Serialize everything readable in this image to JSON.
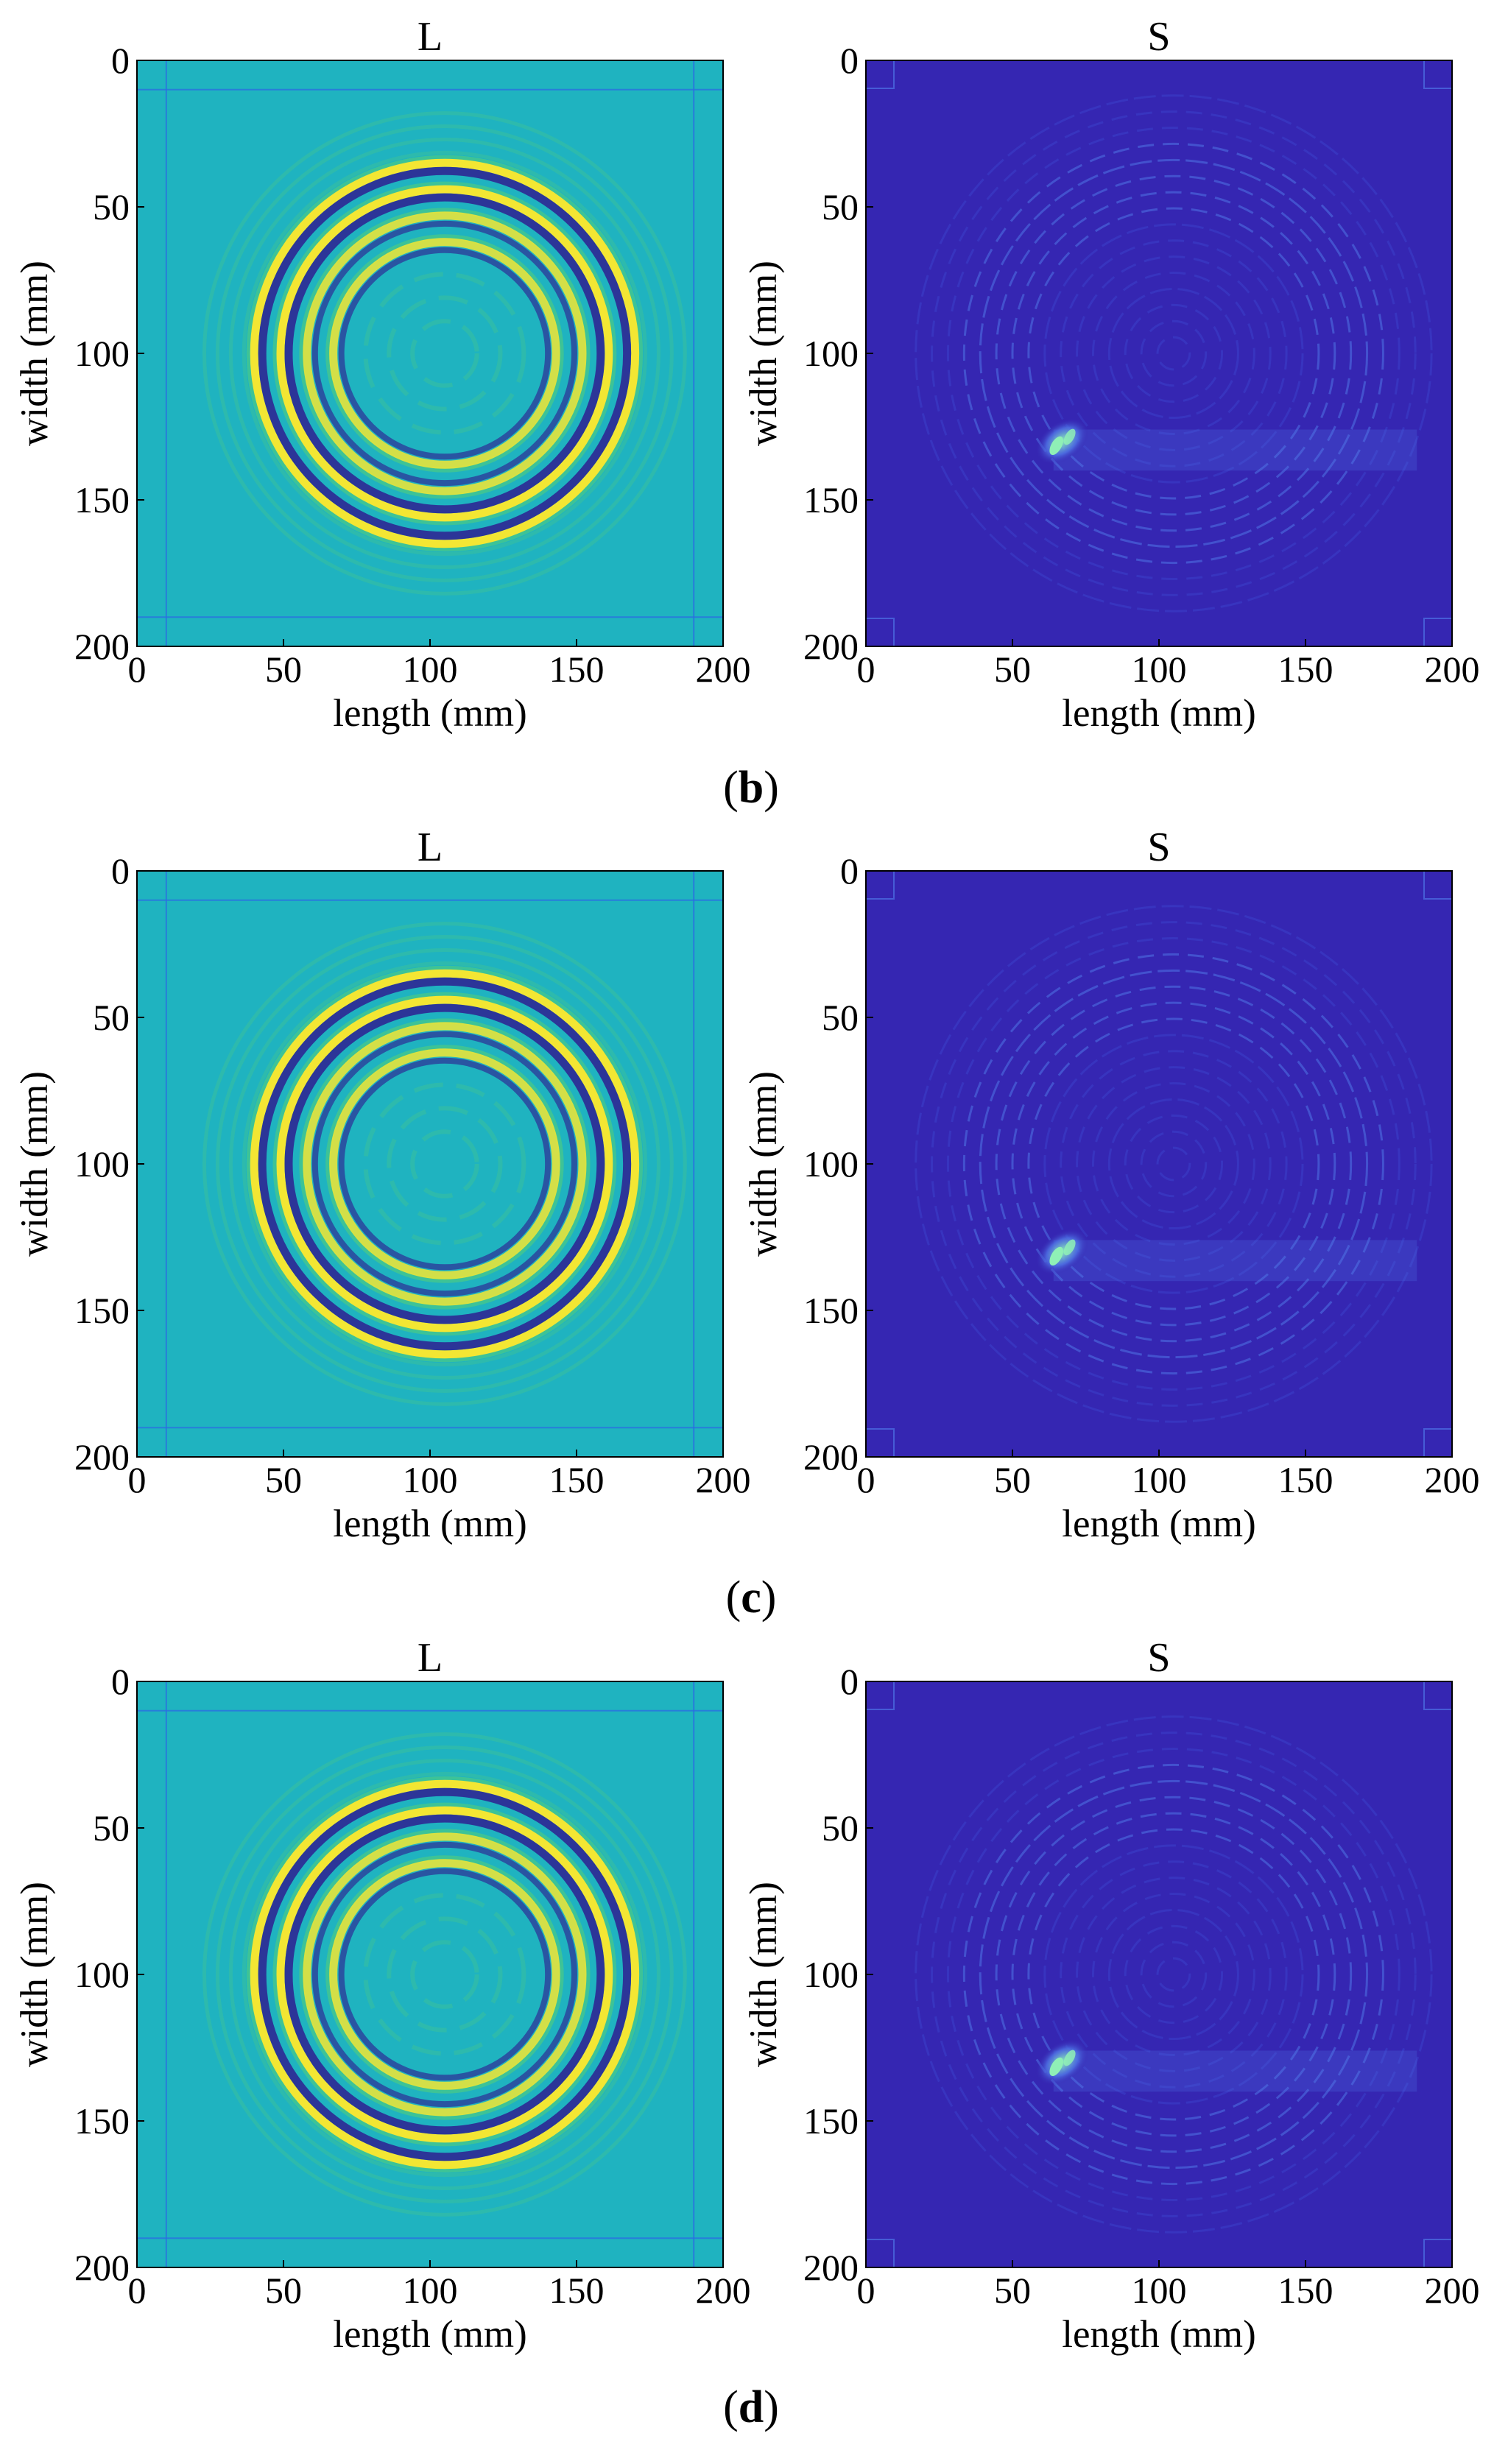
{
  "figure": {
    "rows": [
      {
        "caption": {
          "open": "(",
          "letter": "b",
          "close": ")"
        }
      },
      {
        "caption": {
          "open": "(",
          "letter": "c",
          "close": ")"
        }
      },
      {
        "caption": {
          "open": "(",
          "letter": "d",
          "close": ")"
        }
      }
    ]
  },
  "chart_data": [
    {
      "type": "heatmap",
      "panel": "b-L",
      "title": "L",
      "xlabel": "length (mm)",
      "ylabel": "width (mm)",
      "xlim": [
        0,
        200
      ],
      "ylim": [
        0,
        200
      ],
      "y_direction": "reversed",
      "xticks": [
        0,
        50,
        100,
        150,
        200
      ],
      "yticks": [
        0,
        50,
        100,
        150,
        200
      ],
      "colormap": "parula",
      "pattern": "concentric rings",
      "rings": {
        "center": [
          105,
          100
        ],
        "radii_mm": [
          64,
          55,
          46,
          37
        ]
      }
    },
    {
      "type": "heatmap",
      "panel": "b-S",
      "title": "S",
      "xlabel": "length (mm)",
      "ylabel": "width (mm)",
      "xlim": [
        0,
        200
      ],
      "ylim": [
        0,
        200
      ],
      "y_direction": "reversed",
      "xticks": [
        0,
        50,
        100,
        150,
        200
      ],
      "yticks": [
        0,
        50,
        100,
        150,
        200
      ],
      "colormap": "parula",
      "pattern": "faint rings with bright sparse spot",
      "hotspot": {
        "x": 67,
        "y": 130
      }
    },
    {
      "type": "heatmap",
      "panel": "c-L",
      "title": "L",
      "xlabel": "length (mm)",
      "ylabel": "width (mm)",
      "xlim": [
        0,
        200
      ],
      "ylim": [
        0,
        200
      ],
      "y_direction": "reversed",
      "xticks": [
        0,
        50,
        100,
        150,
        200
      ],
      "yticks": [
        0,
        50,
        100,
        150,
        200
      ],
      "colormap": "parula",
      "pattern": "concentric rings",
      "rings": {
        "center": [
          105,
          100
        ],
        "radii_mm": [
          64,
          55,
          46,
          37
        ]
      }
    },
    {
      "type": "heatmap",
      "panel": "c-S",
      "title": "S",
      "xlabel": "length (mm)",
      "ylabel": "width (mm)",
      "xlim": [
        0,
        200
      ],
      "ylim": [
        0,
        200
      ],
      "y_direction": "reversed",
      "xticks": [
        0,
        50,
        100,
        150,
        200
      ],
      "yticks": [
        0,
        50,
        100,
        150,
        200
      ],
      "colormap": "parula",
      "pattern": "faint rings with bright sparse spot",
      "hotspot": {
        "x": 67,
        "y": 130
      }
    },
    {
      "type": "heatmap",
      "panel": "d-L",
      "title": "L",
      "xlabel": "length (mm)",
      "ylabel": "width (mm)",
      "xlim": [
        0,
        200
      ],
      "ylim": [
        0,
        200
      ],
      "y_direction": "reversed",
      "xticks": [
        0,
        50,
        100,
        150,
        200
      ],
      "yticks": [
        0,
        50,
        100,
        150,
        200
      ],
      "colormap": "parula",
      "pattern": "concentric rings",
      "rings": {
        "center": [
          105,
          100
        ],
        "radii_mm": [
          64,
          55,
          46,
          37
        ]
      }
    },
    {
      "type": "heatmap",
      "panel": "d-S",
      "title": "S",
      "xlabel": "length (mm)",
      "ylabel": "width (mm)",
      "xlim": [
        0,
        200
      ],
      "ylim": [
        0,
        200
      ],
      "y_direction": "reversed",
      "xticks": [
        0,
        50,
        100,
        150,
        200
      ],
      "yticks": [
        0,
        50,
        100,
        150,
        200
      ],
      "colormap": "parula",
      "pattern": "faint rings with bright sparse spot",
      "hotspot": {
        "x": 67,
        "y": 130
      }
    }
  ],
  "colors": {
    "l_background": "#1fb3c0",
    "s_background": "#3526b2",
    "ring_yellow": "#f3e633",
    "ring_navy": "#2d2e96",
    "ring_green": "#48c88a",
    "ring_cyan": "#2bbfcf",
    "s_ring": "#4f74e6",
    "s_ring_faint": "#3e4fd6",
    "hotspot_bright": "#8ff0b6",
    "grid_line": "#2b6fe0",
    "axis": "#000000"
  }
}
